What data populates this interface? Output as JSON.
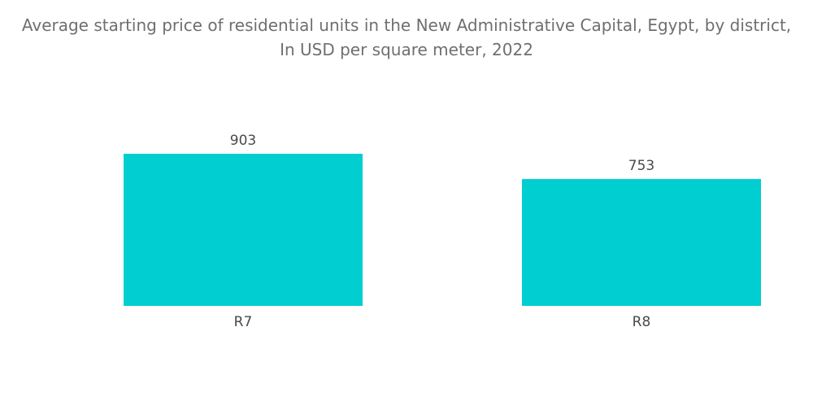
{
  "chart_data": {
    "type": "bar",
    "title": "Average starting price of residential units in the New Administrative Capital, Egypt, by district, In USD per square meter, 2022",
    "categories": [
      "R7",
      "R8"
    ],
    "values": [
      903,
      753
    ],
    "value_labels": [
      "903",
      "753"
    ],
    "xlabel": "",
    "ylabel": "",
    "ylim": [
      0,
      903
    ],
    "grid": false,
    "legend": "none",
    "bar_color": "#00CED1"
  }
}
